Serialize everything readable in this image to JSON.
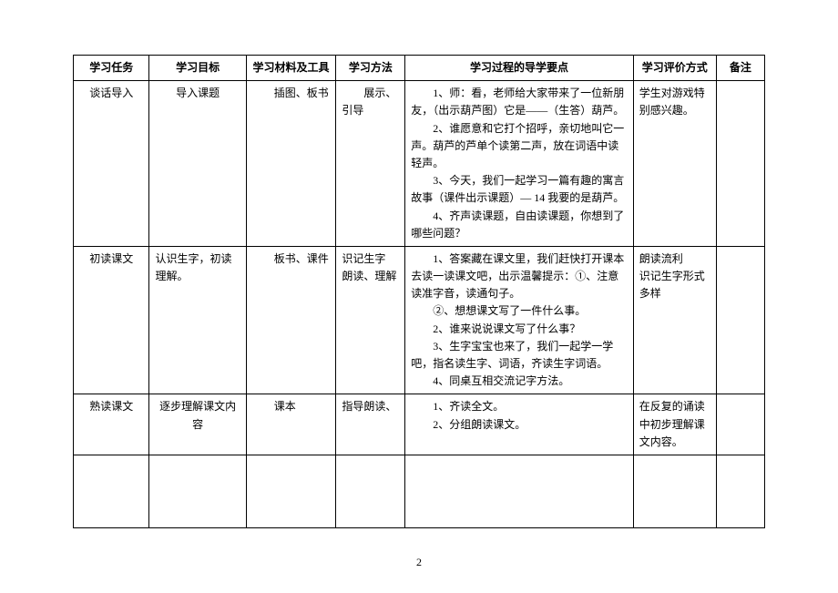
{
  "headers": {
    "c1": "学习任务",
    "c2": "学习目标",
    "c3": "学习材料及工具",
    "c4": "学习方法",
    "c5": "学习过程的导学要点",
    "c6": "学习评价方式",
    "c7": "备注"
  },
  "rows": [
    {
      "task": "谈话导入",
      "goal": "导入课题",
      "material": "插图、板书",
      "method": "展示、引导",
      "points": [
        "1、师：看，老师给大家带来了一位新朋友，（出示葫芦图）它是——（生答）葫芦。",
        "2、谁愿意和它打个招呼，亲切地叫它一声。葫芦的芦单个读第二声，放在词语中读轻声。",
        "3、今天，我们一起学习一篇有趣的寓言故事（课件出示课题）— 14 我要的是葫芦。",
        "4、齐声读课题，自由读课题，你想到了哪些问题？"
      ],
      "eval": "学生对游戏特别感兴趣。",
      "note": ""
    },
    {
      "task": "初读课文",
      "goal": "认识生字，初读理解。",
      "material": "板书、课件",
      "method": "识记生字\n朗读、理解",
      "points": [
        "1、答案藏在课文里，我们赶快打开课本去读一读课文吧，出示温馨提示：①、注意读准字音，读通句子。",
        "②、想想课文写了一件什么事。",
        "2、谁来说说课文写了什么事？",
        "3、生字宝宝也来了，我们一起学一学吧，指名读生字、词语，齐读生字词语。",
        "4、同桌互相交流记字方法。"
      ],
      "eval": "朗读流利\n识记生字形式多样",
      "note": ""
    },
    {
      "task": "熟读课文",
      "goal": "逐步理解课文内容",
      "material": "课本",
      "method": "指导朗读、",
      "points": [
        "1、齐读全文。",
        "2、分组朗读课文。"
      ],
      "eval": "在反复的诵读中初步理解课文内容。",
      "note": ""
    }
  ],
  "pageNumber": "2"
}
